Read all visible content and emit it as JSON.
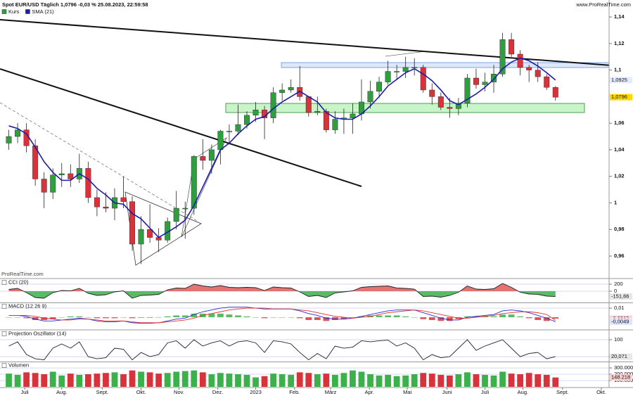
{
  "chart_data": [
    {
      "type": "candlestick",
      "title": "Spot EUR/USD Täglich 1,0796 -0,03 % 25.08.2023, 22:59:58",
      "source": "www.ProRealTime.com",
      "watermark": "ProRealTime.com",
      "x": [
        1,
        2,
        3,
        4,
        5,
        6,
        7,
        8,
        9,
        10,
        11,
        12,
        13,
        14,
        15,
        16,
        17,
        18,
        19,
        20,
        21,
        22,
        23,
        24,
        25,
        26,
        27,
        28,
        29,
        30,
        31,
        32,
        33,
        34,
        35,
        36,
        37,
        38,
        39,
        40,
        41,
        42,
        43,
        44,
        45,
        46,
        47,
        48,
        49,
        50,
        51,
        52,
        53,
        54,
        55,
        56,
        57,
        58,
        59,
        60,
        61,
        62,
        63
      ],
      "xlim": [
        0,
        69
      ],
      "xticks": [
        {
          "value": 2.8,
          "label": "Juli"
        },
        {
          "value": 7.0,
          "label": "Aug."
        },
        {
          "value": 11.6,
          "label": "Sept."
        },
        {
          "value": 16.0,
          "label": "Okt."
        },
        {
          "value": 20.3,
          "label": "Nov."
        },
        {
          "value": 24.7,
          "label": "Dez."
        },
        {
          "value": 29.0,
          "label": "2023"
        },
        {
          "value": 33.4,
          "label": "Feb."
        },
        {
          "value": 37.5,
          "label": "März"
        },
        {
          "value": 41.9,
          "label": "Apr."
        },
        {
          "value": 46.2,
          "label": "Mai"
        },
        {
          "value": 50.7,
          "label": "Juni"
        },
        {
          "value": 55.0,
          "label": "Juli"
        },
        {
          "value": 59.3,
          "label": "Aug."
        },
        {
          "value": 63.8,
          "label": "Sept."
        },
        {
          "value": 68.2,
          "label": "Okt."
        }
      ],
      "ylim": [
        0.9436,
        1.1464
      ],
      "yticks": [
        {
          "value": 0.96,
          "label": "0,96"
        },
        {
          "value": 0.98,
          "label": "0,98"
        },
        1,
        {
          "value": 1.02,
          "label": "1,02"
        },
        {
          "value": 1.04,
          "label": "1,04"
        },
        {
          "value": 1.06,
          "label": "1,06"
        },
        {
          "value": 1.1,
          "label": "1,1"
        },
        {
          "value": 1.12,
          "label": "1,12"
        },
        {
          "value": 1.14,
          "label": "1,14"
        }
      ],
      "series": [
        {
          "name": "Kurs",
          "color": "#2e9e3e",
          "up_color": "#2e9e3e",
          "down_color": "#d8323a",
          "open": [
            1.045,
            1.05,
            1.055,
            1.043,
            1.018,
            1.008,
            1.021,
            1.022,
            1.018,
            1.026,
            1.004,
            0.997,
            0.996,
            1.004,
            1.001,
            0.969,
            0.98,
            0.974,
            0.972,
            0.986,
            0.996,
            0.996,
            1.035,
            1.032,
            1.04,
            1.054,
            1.054,
            1.059,
            1.066,
            1.07,
            1.064,
            1.083,
            1.085,
            1.087,
            1.08,
            1.068,
            1.069,
            1.055,
            1.063,
            1.064,
            1.067,
            1.076,
            1.084,
            1.091,
            1.099,
            1.099,
            1.102,
            1.102,
            1.085,
            1.08,
            1.072,
            1.071,
            1.075,
            1.094,
            1.089,
            1.091,
            1.097,
            1.123,
            1.112,
            1.102,
            1.1,
            1.095,
            1.087
          ],
          "high": [
            1.055,
            1.06,
            1.06,
            1.048,
            1.023,
            1.026,
            1.03,
            1.029,
            1.037,
            1.031,
            1.01,
            1.008,
            1.011,
            1.02,
            1.005,
            0.99,
            0.999,
            0.981,
            0.989,
            1.009,
            1.001,
            1.036,
            1.048,
            1.044,
            1.055,
            1.059,
            1.074,
            1.069,
            1.076,
            1.073,
            1.087,
            1.09,
            1.093,
            1.103,
            1.08,
            1.08,
            1.071,
            1.069,
            1.071,
            1.075,
            1.093,
            1.092,
            1.095,
            1.107,
            1.104,
            1.11,
            1.109,
            1.104,
            1.09,
            1.083,
            1.079,
            1.079,
            1.097,
            1.101,
            1.098,
            1.104,
            1.128,
            1.128,
            1.115,
            1.104,
            1.106,
            1.097,
            1.088
          ],
          "low": [
            1.04,
            1.045,
            1.038,
            1.013,
            0.996,
            1.003,
            1.012,
            1.012,
            1.015,
            1.0,
            0.99,
            0.993,
            0.987,
            0.996,
            0.964,
            0.954,
            0.97,
            0.963,
            0.97,
            0.98,
            0.973,
            0.991,
            1.025,
            1.022,
            1.029,
            1.044,
            1.051,
            1.056,
            1.061,
            1.048,
            1.06,
            1.077,
            1.083,
            1.077,
            1.065,
            1.066,
            1.053,
            1.052,
            1.052,
            1.052,
            1.062,
            1.071,
            1.079,
            1.089,
            1.093,
            1.094,
            1.096,
            1.083,
            1.074,
            1.07,
            1.064,
            1.066,
            1.072,
            1.086,
            1.084,
            1.083,
            1.095,
            1.11,
            1.096,
            1.091,
            1.091,
            1.085,
            1.077
          ],
          "close": [
            1.05,
            1.055,
            1.043,
            1.018,
            1.008,
            1.021,
            1.022,
            1.018,
            1.026,
            1.004,
            0.997,
            0.996,
            1.004,
            1.001,
            0.969,
            0.98,
            0.974,
            0.972,
            0.986,
            0.996,
            0.996,
            1.035,
            1.032,
            1.04,
            1.054,
            1.054,
            1.059,
            1.066,
            1.07,
            1.064,
            1.083,
            1.085,
            1.087,
            1.08,
            1.068,
            1.069,
            1.055,
            1.063,
            1.064,
            1.067,
            1.076,
            1.084,
            1.091,
            1.099,
            1.099,
            1.102,
            1.102,
            1.085,
            1.08,
            1.072,
            1.071,
            1.075,
            1.094,
            1.089,
            1.091,
            1.097,
            1.123,
            1.112,
            1.102,
            1.1,
            1.095,
            1.087,
            1.0796
          ]
        },
        {
          "name": "SMA (21)",
          "color": "#1c1ca8",
          "values": [
            1.058,
            1.056,
            1.052,
            1.042,
            1.031,
            1.023,
            1.017,
            1.017,
            1.022,
            1.018,
            1.011,
            1.006,
            1.0,
            0.999,
            0.992,
            0.988,
            0.981,
            0.974,
            0.978,
            0.982,
            0.987,
            0.998,
            1.012,
            1.026,
            1.04,
            1.045,
            1.052,
            1.058,
            1.063,
            1.065,
            1.071,
            1.076,
            1.08,
            1.084,
            1.08,
            1.076,
            1.068,
            1.064,
            1.063,
            1.063,
            1.067,
            1.073,
            1.08,
            1.088,
            1.093,
            1.098,
            1.101,
            1.097,
            1.092,
            1.085,
            1.077,
            1.074,
            1.078,
            1.082,
            1.087,
            1.093,
            1.101,
            1.106,
            1.109,
            1.107,
            1.103,
            1.098,
            1.0925
          ]
        }
      ],
      "markers": [
        {
          "value": 1.0925,
          "label": "1,0925",
          "color": "#e6ebff"
        },
        {
          "value": 1.0796,
          "label": "1,0796",
          "color": "#ffd800"
        }
      ]
    },
    {
      "type": "line",
      "title": "CCI (20)",
      "ylim": [
        -320,
        340
      ],
      "yticks": [
        200,
        0
      ],
      "series": [
        {
          "color": "#222222",
          "up_color": "#e05a5a",
          "down_color": "#3cb04a",
          "values": [
            50,
            80,
            -40,
            -180,
            -200,
            -40,
            20,
            10,
            80,
            -60,
            -120,
            -100,
            -20,
            10,
            -200,
            -120,
            -110,
            -90,
            40,
            90,
            80,
            200,
            150,
            120,
            160,
            110,
            100,
            110,
            100,
            20,
            120,
            100,
            90,
            -20,
            -150,
            -120,
            -180,
            -50,
            -20,
            10,
            110,
            130,
            140,
            150,
            90,
            80,
            60,
            -150,
            -140,
            -170,
            -120,
            -30,
            150,
            60,
            50,
            70,
            220,
            110,
            -30,
            -80,
            -90,
            -140,
            -151.66
          ]
        }
      ],
      "markers": [
        {
          "value": -151.66,
          "label": "-151,66",
          "color": "#e8e8e8"
        }
      ]
    },
    {
      "type": "line",
      "title": "MACD (12 26 9)",
      "ylim": [
        -0.013,
        0.0154
      ],
      "yticks": [
        {
          "value": 0.01,
          "label": "0,01"
        }
      ],
      "series": [
        {
          "type": "bar",
          "up_color": "#3cb04a",
          "down_color": "#d8323a",
          "values": [
            0,
            0,
            -0.001,
            -0.003,
            -0.003,
            -0.002,
            0,
            0.001,
            0.001,
            0,
            -0.001,
            -0.001,
            -0.001,
            0,
            -0.001,
            -0.0005,
            -0.0005,
            0,
            0.001,
            0.002,
            0.002,
            0.004,
            0.004,
            0.004,
            0.004,
            0.003,
            0.002,
            0.001,
            0,
            -0.001,
            0,
            0,
            0,
            -0.001,
            -0.003,
            -0.003,
            -0.004,
            -0.003,
            -0.002,
            0,
            0.001,
            0.002,
            0.002,
            0.002,
            0.002,
            0.001,
            0,
            -0.002,
            -0.003,
            -0.004,
            -0.004,
            -0.002,
            0.001,
            0.001,
            0.001,
            0.001,
            0.003,
            0.003,
            0.001,
            -0.001,
            -0.003,
            -0.004,
            -0.0015
          ]
        },
        {
          "color": "#2a2ad0",
          "values": [
            0.002,
            0.002,
            0.001,
            -0.002,
            -0.004,
            -0.004,
            -0.003,
            -0.002,
            -0.001,
            -0.002,
            -0.004,
            -0.005,
            -0.005,
            -0.004,
            -0.006,
            -0.0065,
            -0.0065,
            -0.006,
            -0.004,
            -0.002,
            -0.001,
            0.003,
            0.006,
            0.008,
            0.01,
            0.011,
            0.011,
            0.011,
            0.01,
            0.009,
            0.009,
            0.009,
            0.009,
            0.007,
            0.004,
            0.002,
            -0.001,
            -0.002,
            -0.002,
            -0.001,
            0.001,
            0.003,
            0.005,
            0.007,
            0.008,
            0.008,
            0.008,
            0.005,
            0.002,
            -0.001,
            -0.003,
            -0.003,
            0.0,
            0.001,
            0.002,
            0.003,
            0.007,
            0.008,
            0.007,
            0.005,
            0.002,
            -0.001,
            -0.0049
          ]
        },
        {
          "color": "#e03030",
          "values": [
            0.002,
            0.002,
            0.002,
            0.001,
            -0.001,
            -0.002,
            -0.003,
            -0.003,
            -0.002,
            -0.002,
            -0.003,
            -0.004,
            -0.004,
            -0.004,
            -0.005,
            -0.006,
            -0.006,
            -0.006,
            -0.005,
            -0.004,
            -0.003,
            -0.001,
            0.002,
            0.004,
            0.006,
            0.008,
            0.009,
            0.01,
            0.01,
            0.01,
            0.009,
            0.009,
            0.009,
            0.008,
            0.007,
            0.005,
            0.003,
            0.001,
            0.0,
            -0.001,
            0.0,
            0.001,
            0.003,
            0.005,
            0.006,
            0.007,
            0.008,
            0.007,
            0.005,
            0.003,
            0.001,
            -0.001,
            -0.001,
            0.0,
            0.001,
            0.002,
            0.004,
            0.005,
            0.006,
            0.006,
            0.005,
            0.003,
            -0.0034
          ]
        }
      ],
      "markers": [
        {
          "value": -0.0015,
          "label": "-0,0015",
          "color": "#ffd0d0"
        },
        {
          "value": -0.0034,
          "label": "-0,0034",
          "color": "#ffe0e0"
        },
        {
          "value": -0.0049,
          "label": "-0,0049",
          "color": "#e0e4ff"
        }
      ]
    },
    {
      "type": "line",
      "title": "Projection Oszillator (14)",
      "ylim": [
        -3,
        143
      ],
      "yticks": [
        100,
        20
      ],
      "series": [
        {
          "color": "#222222",
          "values": [
            70,
            90,
            30,
            10,
            5,
            60,
            80,
            60,
            90,
            20,
            10,
            15,
            60,
            55,
            5,
            40,
            20,
            30,
            85,
            95,
            60,
            100,
            70,
            85,
            95,
            70,
            90,
            95,
            85,
            40,
            95,
            90,
            80,
            40,
            5,
            35,
            10,
            70,
            60,
            65,
            95,
            90,
            95,
            98,
            70,
            85,
            60,
            5,
            30,
            15,
            20,
            60,
            100,
            50,
            70,
            85,
            100,
            60,
            20,
            35,
            40,
            10,
            20.071
          ]
        }
      ],
      "markers": [
        {
          "value": 20.071,
          "label": "20,071",
          "color": "#e8e8e8"
        }
      ]
    },
    {
      "type": "bar",
      "title": "Volumen",
      "ylim": [
        0,
        390000
      ],
      "yticks": [
        {
          "value": 300000,
          "label": "300.000"
        },
        {
          "value": 200000,
          "label": "200.000"
        },
        {
          "value": 100000,
          "label": "100.000"
        }
      ],
      "series": [
        {
          "up_color": "#3cb04a",
          "down_color": "#d8323a",
          "values": [
            210000,
            190000,
            230000,
            220000,
            200000,
            240000,
            180000,
            210000,
            190000,
            200000,
            210000,
            220000,
            230000,
            200000,
            260000,
            240000,
            230000,
            210000,
            220000,
            240000,
            250000,
            260000,
            230000,
            200000,
            220000,
            210000,
            200000,
            190000,
            150000,
            170000,
            210000,
            200000,
            190000,
            230000,
            220000,
            200000,
            210000,
            190000,
            220000,
            260000,
            240000,
            200000,
            180000,
            190000,
            170000,
            180000,
            200000,
            220000,
            210000,
            190000,
            180000,
            200000,
            230000,
            200000,
            190000,
            180000,
            240000,
            210000,
            200000,
            220000,
            200000,
            190000,
            148218
          ]
        }
      ],
      "markers": [
        {
          "value": 148218,
          "label": "148.218",
          "color": "#ffd0d0"
        }
      ]
    }
  ]
}
